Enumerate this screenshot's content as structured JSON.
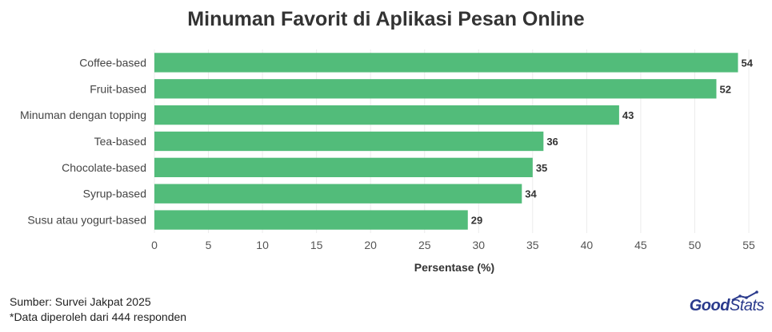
{
  "chart_data": {
    "type": "bar",
    "orientation": "horizontal",
    "title": "Minuman Favorit di Aplikasi Pesan Online",
    "xlabel": "Persentase (%)",
    "ylabel": "",
    "xlim": [
      0,
      55
    ],
    "xticks": [
      0,
      5,
      10,
      15,
      20,
      25,
      30,
      35,
      40,
      45,
      50,
      55
    ],
    "grid": true,
    "bar_color": "#52bc7a",
    "categories": [
      "Coffee-based",
      "Fruit-based",
      "Minuman dengan topping",
      "Tea-based",
      "Chocolate-based",
      "Syrup-based",
      "Susu atau yogurt-based"
    ],
    "values": [
      54,
      52,
      43,
      36,
      35,
      34,
      29
    ]
  },
  "footer": {
    "source": "Sumber: Survei Jakpat 2025",
    "note": "*Data diperoleh dari 444 responden"
  },
  "brand": {
    "part1": "Good",
    "part2": "Stats"
  }
}
